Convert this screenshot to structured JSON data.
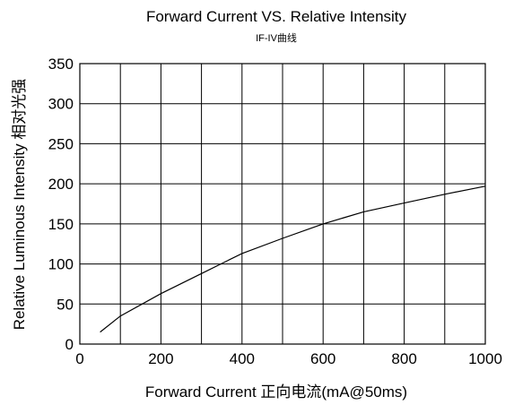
{
  "chart_data": {
    "type": "line",
    "title": "Forward Current VS. Relative Intensity",
    "subtitle": "IF-IV曲线",
    "xlabel": "Forward Current 正向电流(mA@50ms)",
    "ylabel": "Relative Luminous Intensity 相对光强",
    "xlim": [
      0,
      1000
    ],
    "ylim": [
      0,
      350
    ],
    "grid": true,
    "x_ticks": [
      0,
      200,
      400,
      600,
      800,
      1000
    ],
    "x_tick_labels": [
      "0",
      "200",
      "400",
      "600",
      "800",
      "1000"
    ],
    "y_ticks": [
      0,
      50,
      100,
      150,
      200,
      250,
      300,
      350
    ],
    "y_tick_labels": [
      "0",
      "50",
      "100",
      "150",
      "200",
      "250",
      "300",
      "350"
    ],
    "x_grid_step": 100,
    "series": [
      {
        "x": [
          50,
          100,
          200,
          300,
          400,
          500,
          600,
          700,
          800,
          900,
          1000
        ],
        "y": [
          15,
          35,
          63,
          88,
          113,
          132,
          150,
          165,
          176,
          187,
          197
        ]
      }
    ],
    "colors": {
      "line": "#000000",
      "grid": "#000000"
    }
  }
}
